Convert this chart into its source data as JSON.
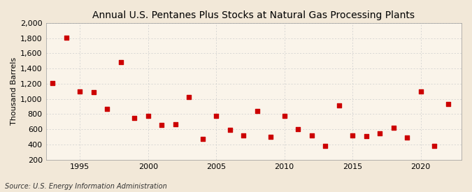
{
  "title": "Annual U.S. Pentanes Plus Stocks at Natural Gas Processing Plants",
  "ylabel": "Thousand Barrels",
  "source": "Source: U.S. Energy Information Administration",
  "background_color": "#f2e8d8",
  "plot_background_color": "#faf4ea",
  "marker_color": "#cc0000",
  "marker_size": 18,
  "years": [
    1993,
    1994,
    1995,
    1996,
    1997,
    1998,
    1999,
    2000,
    2001,
    2002,
    2003,
    2004,
    2005,
    2006,
    2007,
    2008,
    2009,
    2010,
    2011,
    2012,
    2013,
    2014,
    2015,
    2016,
    2017,
    2018,
    2019,
    2020,
    2021,
    2022
  ],
  "values": [
    1210,
    1810,
    1100,
    1090,
    870,
    1480,
    750,
    775,
    660,
    665,
    1020,
    470,
    780,
    590,
    515,
    840,
    500,
    775,
    600,
    515,
    380,
    910,
    520,
    510,
    550,
    620,
    490,
    1100,
    380,
    930
  ],
  "ylim": [
    200,
    2000
  ],
  "yticks": [
    200,
    400,
    600,
    800,
    1000,
    1200,
    1400,
    1600,
    1800,
    2000
  ],
  "xlim": [
    1992.5,
    2023
  ],
  "xticks": [
    1995,
    2000,
    2005,
    2010,
    2015,
    2020
  ],
  "grid_color": "#cccccc",
  "title_fontsize": 10,
  "axis_fontsize": 8,
  "tick_fontsize": 8,
  "source_fontsize": 7
}
